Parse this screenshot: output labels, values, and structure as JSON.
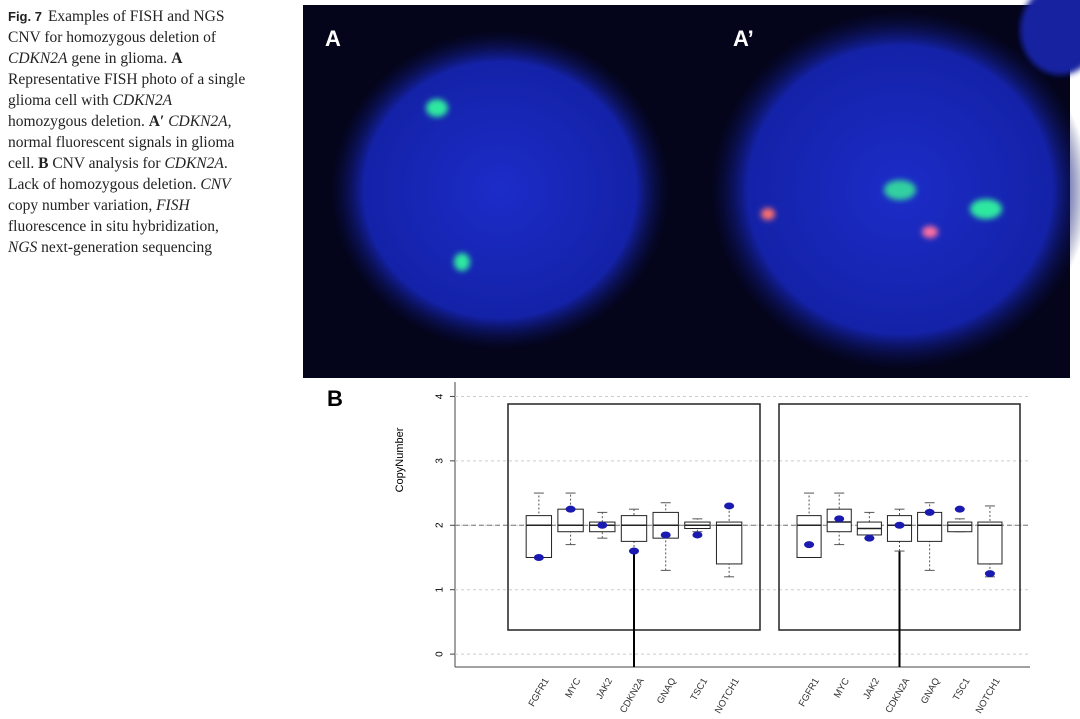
{
  "caption": {
    "runs": [
      "Fig. 7",
      "Examples of FISH and NGS CNV for homozygous deletion of ",
      "CDKN2A",
      " gene in glioma. ",
      "A",
      " Representative FISH photo of a single glioma cell with ",
      "CDKN2A",
      " homozygous deletion. ",
      "A′",
      "CDKN2A",
      ", normal fluorescent signals in glioma cell. ",
      "B",
      " CNV analysis for ",
      "CDKN2A",
      ". Lack of homozygous deletion. ",
      "CNV",
      " copy number variation, ",
      "FISH",
      " fluorescence in situ hybridization, ",
      "NGS",
      " next-generation sequencing"
    ]
  },
  "images": {
    "left_label": "A",
    "right_label": "A’"
  },
  "chart_data": {
    "type": "box",
    "panel_label": "B",
    "y_label": "CopyNumber",
    "categories": [
      "FGFR1",
      "MYC",
      "JAK2",
      "CDKN2A",
      "GNAQ",
      "TSC1",
      "NOTCH1"
    ],
    "ylim": [
      -0.2,
      4.1
    ],
    "yticks": [
      0,
      1,
      2,
      3,
      4
    ],
    "grid": true,
    "reference_line": 2,
    "box_color": "#222222",
    "point_color": "#1a1ab0",
    "panels": [
      {
        "low": [
          1.5,
          1.7,
          1.8,
          1.6,
          1.3,
          1.9,
          1.2
        ],
        "q1": [
          1.5,
          1.9,
          1.9,
          1.75,
          1.8,
          1.95,
          1.4
        ],
        "median": [
          2.0,
          2.0,
          2.0,
          2.0,
          2.0,
          2.0,
          2.0
        ],
        "q3": [
          2.15,
          2.25,
          2.05,
          2.15,
          2.2,
          2.05,
          2.05
        ],
        "high": [
          2.5,
          2.5,
          2.2,
          2.25,
          2.35,
          2.1,
          2.3
        ],
        "points": [
          1.5,
          2.25,
          2.0,
          1.6,
          1.85,
          1.85,
          2.3
        ]
      },
      {
        "low": [
          1.5,
          1.7,
          1.8,
          1.6,
          1.3,
          1.9,
          1.2
        ],
        "q1": [
          1.5,
          1.9,
          1.85,
          1.75,
          1.75,
          1.9,
          1.4
        ],
        "median": [
          2.0,
          2.05,
          1.95,
          2.0,
          2.0,
          2.0,
          2.0
        ],
        "q3": [
          2.15,
          2.25,
          2.05,
          2.15,
          2.2,
          2.05,
          2.05
        ],
        "high": [
          2.5,
          2.5,
          2.2,
          2.25,
          2.35,
          2.1,
          2.3
        ],
        "points": [
          1.7,
          2.1,
          1.8,
          2.0,
          2.2,
          2.25,
          1.25
        ]
      }
    ]
  }
}
